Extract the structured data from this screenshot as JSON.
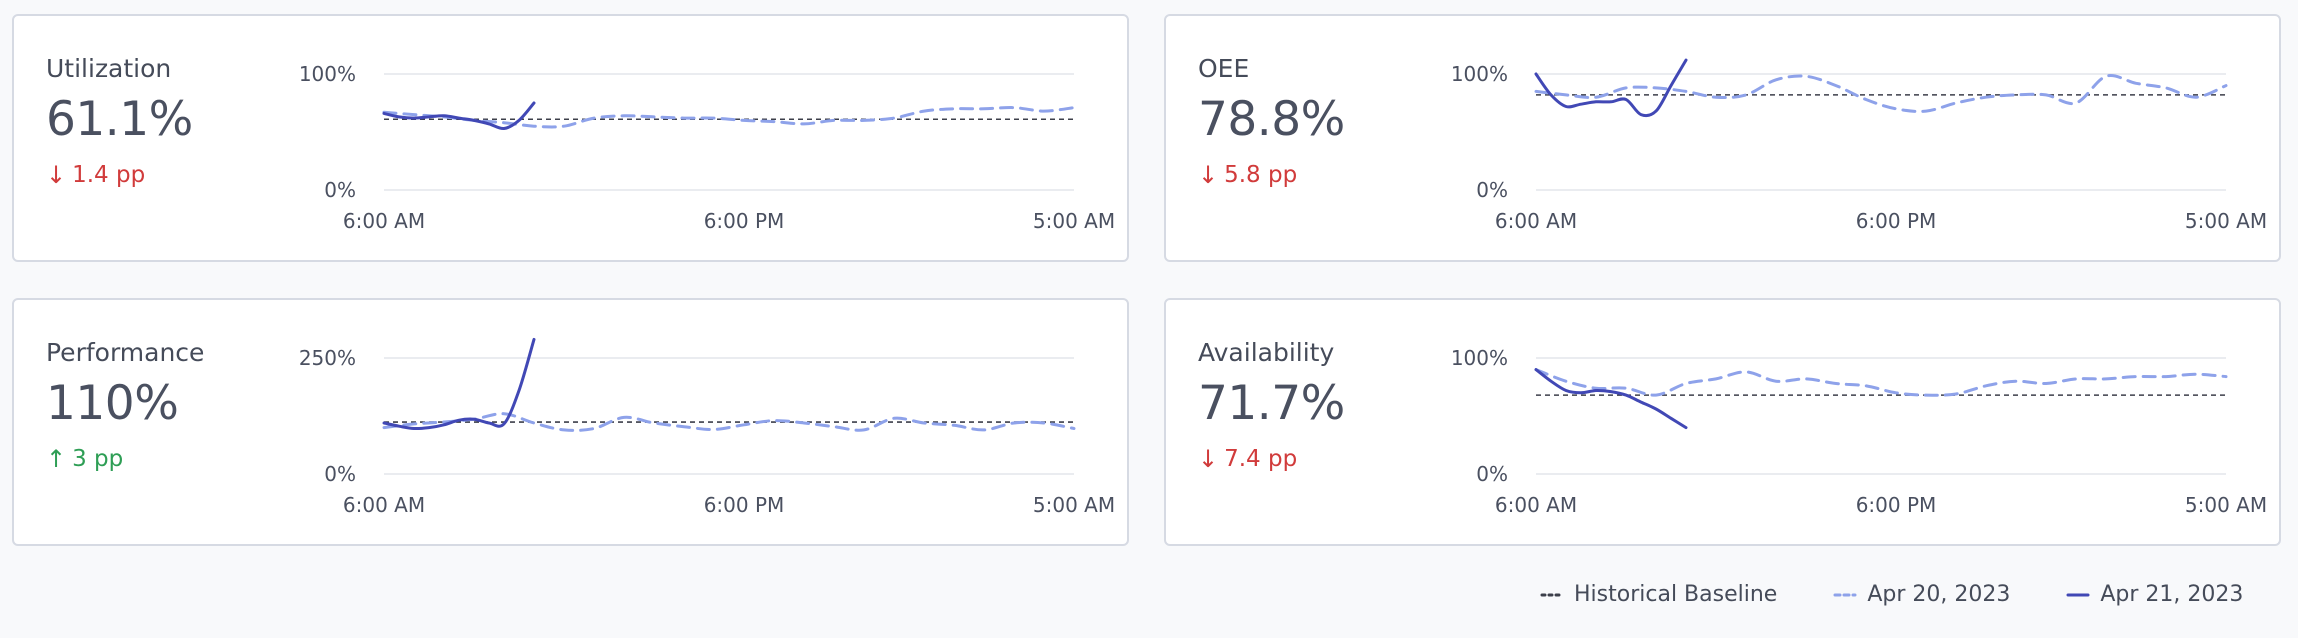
{
  "colors": {
    "baseline": "#3c3f4a",
    "prev_day": "#8ea2ea",
    "current_day": "#4148b5",
    "grid": "#e3e6ec",
    "down": "#d13b3b",
    "up": "#2e9e55"
  },
  "x_ticks": [
    "6:00 AM",
    "6:00 PM",
    "5:00 AM"
  ],
  "legend": {
    "baseline": "Historical Baseline",
    "prev_day": "Apr 20, 2023",
    "current_day": "Apr 21, 2023"
  },
  "chart_data": [
    {
      "type": "line",
      "title": "Utilization",
      "value": "61.1%",
      "delta": "1.4 pp",
      "delta_direction": "down",
      "y_ticks": [
        "100%",
        "0%"
      ],
      "ylim": [
        0,
        100
      ],
      "x_hours": [
        0,
        23
      ],
      "baseline": 61,
      "series": [
        {
          "name": "Apr 20, 2023",
          "style": "dashed",
          "x": [
            0,
            1,
            2,
            3,
            4,
            5,
            6,
            7,
            8,
            9,
            10,
            11,
            12,
            13,
            14,
            15,
            16,
            17,
            18,
            19,
            20,
            21,
            22,
            23
          ],
          "y": [
            67,
            65,
            63,
            60,
            58,
            55,
            55,
            62,
            64,
            63,
            62,
            62,
            60,
            59,
            57,
            60,
            60,
            62,
            68,
            70,
            70,
            71,
            68,
            71
          ]
        },
        {
          "name": "Apr 21, 2023",
          "style": "solid",
          "x": [
            0,
            0.5,
            1,
            1.5,
            2,
            2.5,
            3,
            3.5,
            4,
            4.5,
            5
          ],
          "y": [
            66,
            63,
            62,
            63,
            64,
            62,
            60,
            57,
            53,
            60,
            75
          ]
        }
      ]
    },
    {
      "type": "line",
      "title": "OEE",
      "value": "78.8%",
      "delta": "5.8 pp",
      "delta_direction": "down",
      "y_ticks": [
        "100%",
        "0%"
      ],
      "ylim": [
        0,
        100
      ],
      "x_hours": [
        0,
        23
      ],
      "baseline": 82,
      "series": [
        {
          "name": "Apr 20, 2023",
          "style": "dashed",
          "x": [
            0,
            1,
            2,
            3,
            4,
            5,
            6,
            7,
            8,
            9,
            10,
            11,
            12,
            13,
            14,
            15,
            16,
            17,
            18,
            19,
            20,
            21,
            22,
            23
          ],
          "y": [
            85,
            82,
            80,
            88,
            88,
            85,
            80,
            82,
            95,
            98,
            90,
            78,
            70,
            68,
            75,
            80,
            82,
            82,
            75,
            98,
            92,
            88,
            80,
            90
          ]
        },
        {
          "name": "Apr 21, 2023",
          "style": "solid",
          "x": [
            0,
            0.5,
            1,
            1.5,
            2,
            2.5,
            3,
            3.5,
            4,
            4.5,
            5
          ],
          "y": [
            100,
            82,
            72,
            74,
            76,
            76,
            78,
            65,
            68,
            90,
            112
          ]
        }
      ]
    },
    {
      "type": "line",
      "title": "Performance",
      "value": "110%",
      "delta": "3 pp",
      "delta_direction": "up",
      "y_ticks": [
        "250%",
        "0%"
      ],
      "ylim": [
        0,
        250
      ],
      "x_hours": [
        0,
        23
      ],
      "baseline": 112,
      "series": [
        {
          "name": "Apr 20, 2023",
          "style": "dashed",
          "x": [
            0,
            1,
            2,
            3,
            4,
            5,
            6,
            7,
            8,
            9,
            10,
            11,
            12,
            13,
            14,
            15,
            16,
            17,
            18,
            19,
            20,
            21,
            22,
            23
          ],
          "y": [
            100,
            108,
            112,
            118,
            130,
            110,
            95,
            98,
            122,
            110,
            102,
            96,
            106,
            115,
            110,
            102,
            95,
            120,
            110,
            105,
            95,
            110,
            110,
            98
          ]
        },
        {
          "name": "Apr 21, 2023",
          "style": "solid",
          "x": [
            0,
            0.5,
            1,
            1.5,
            2,
            2.5,
            3,
            3.5,
            4,
            4.5,
            5
          ],
          "y": [
            110,
            103,
            98,
            100,
            106,
            116,
            118,
            110,
            108,
            180,
            290
          ]
        }
      ]
    },
    {
      "type": "line",
      "title": "Availability",
      "value": "71.7%",
      "delta": "7.4 pp",
      "delta_direction": "down",
      "y_ticks": [
        "100%",
        "0%"
      ],
      "ylim": [
        0,
        100
      ],
      "x_hours": [
        0,
        23
      ],
      "baseline": 68,
      "series": [
        {
          "name": "Apr 20, 2023",
          "style": "dashed",
          "x": [
            0,
            1,
            2,
            3,
            4,
            5,
            6,
            7,
            8,
            9,
            10,
            11,
            12,
            13,
            14,
            15,
            16,
            17,
            18,
            19,
            20,
            21,
            22,
            23
          ],
          "y": [
            90,
            80,
            74,
            74,
            68,
            78,
            82,
            88,
            80,
            82,
            78,
            76,
            70,
            68,
            69,
            76,
            80,
            78,
            82,
            82,
            84,
            84,
            86,
            84
          ]
        },
        {
          "name": "Apr 21, 2023",
          "style": "solid",
          "x": [
            0,
            0.5,
            1,
            1.5,
            2,
            2.5,
            3,
            3.5,
            4,
            4.5,
            5
          ],
          "y": [
            90,
            80,
            72,
            70,
            72,
            71,
            68,
            62,
            56,
            48,
            40
          ]
        }
      ]
    }
  ]
}
